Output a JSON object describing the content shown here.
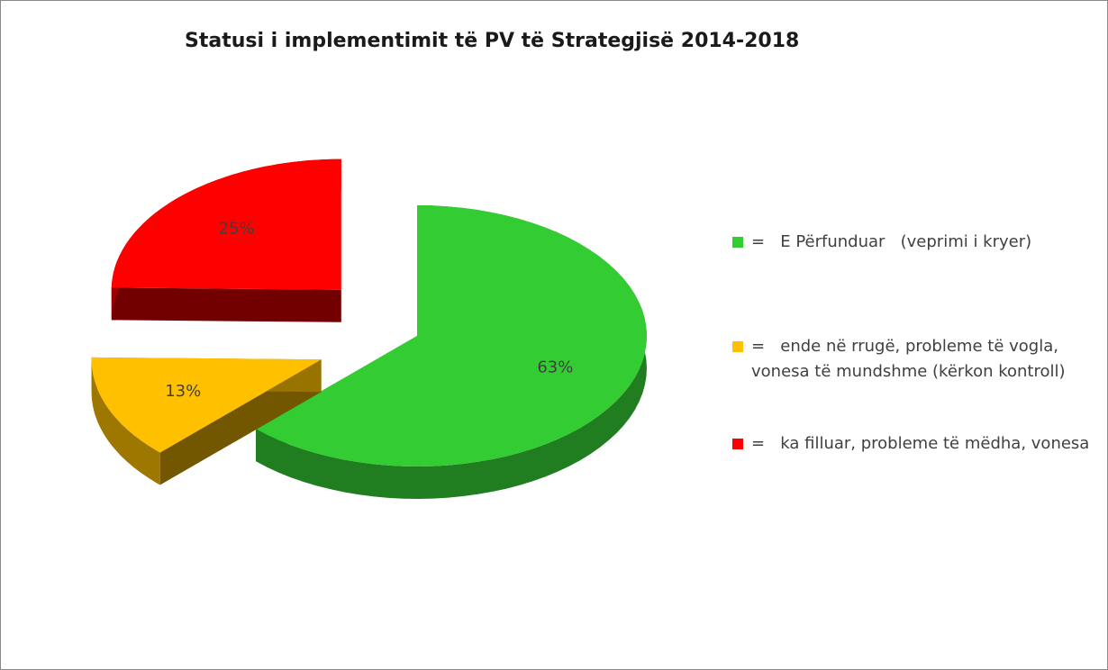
{
  "chart_data": {
    "type": "pie",
    "title": "Statusi i implementimit të PV të Strategjisë 2014-2018",
    "categories": [
      "=   E Përfunduar   (veprimi i kryer)",
      "=   ende në rrugë, probleme të vogla, vonesa të mundshme (kërkon kontroll)",
      "=   ka filluar, probleme të mëdha, vonesa"
    ],
    "values": [
      63,
      13,
      25
    ],
    "value_labels": [
      "63%",
      "13%",
      "25%"
    ],
    "colors": [
      "#33cc33",
      "#ffc000",
      "#ff0000"
    ],
    "legend": "right"
  }
}
